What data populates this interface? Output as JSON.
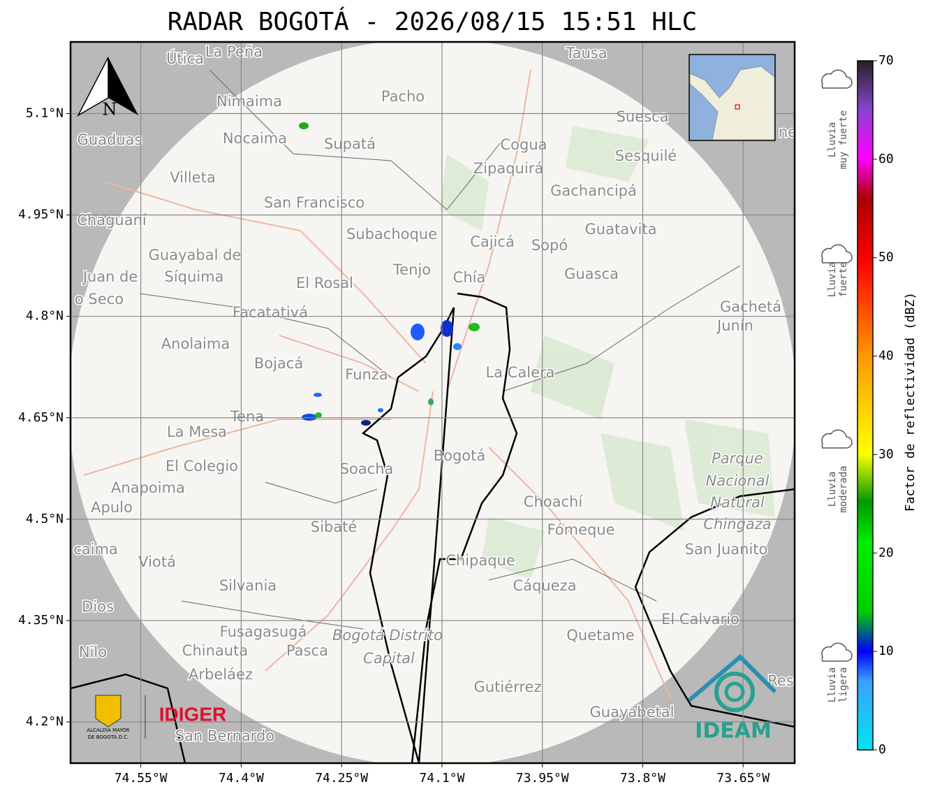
{
  "title": "RADAR BOGOTÁ - 2026/08/15 15:51 HLC",
  "map": {
    "xlim": [
      -74.655,
      -73.573
    ],
    "ylim": [
      4.139,
      5.206
    ],
    "xticks": [
      {
        "value": -74.55,
        "label": "74.55°W"
      },
      {
        "value": -74.4,
        "label": "74.4°W"
      },
      {
        "value": -74.25,
        "label": "74.25°W"
      },
      {
        "value": -74.1,
        "label": "74.1°W"
      },
      {
        "value": -73.95,
        "label": "73.95°W"
      },
      {
        "value": -73.8,
        "label": "73.8°W"
      },
      {
        "value": -73.65,
        "label": "73.65°W"
      }
    ],
    "yticks": [
      {
        "value": 4.2,
        "label": "4.2°N"
      },
      {
        "value": 4.35,
        "label": "4.35°N"
      },
      {
        "value": 4.5,
        "label": "4.5°N"
      },
      {
        "value": 4.65,
        "label": "4.65°N"
      },
      {
        "value": 4.8,
        "label": "4.8°N"
      },
      {
        "value": 4.95,
        "label": "4.95°N"
      },
      {
        "value": 5.1,
        "label": "5.1°N"
      }
    ],
    "north": "N",
    "places": [
      "Útica",
      "La Peña",
      "Tausa",
      "Pacho",
      "Nimaima",
      "Guaduas",
      "Nocaima",
      "Supatá",
      "Cogua",
      "Suesca",
      "Sesquilé",
      "Zipaquirá",
      "Villeta",
      "Gachancipá",
      "San Francisco",
      "Chaguaní",
      "Guatavita",
      "Subachoque",
      "Cajicá",
      "Sopó",
      "Guayabal de",
      "Síquima",
      "Juan de",
      "Tenjo",
      "Chía",
      "Guasca",
      "El Rosal",
      "o Seco",
      "Facatativá",
      "Gachetá",
      "Junín",
      "Anolaima",
      "Bojacá",
      "Funza",
      "La Calera",
      "Tena",
      "La Mesa",
      "Bogotá",
      "Parque",
      "Nacional",
      "Natural",
      "Chingaza",
      "El Colegio",
      "Soacha",
      "Anapoima",
      "Apulo",
      "Choachí",
      "Sibaté",
      "Fómeque",
      "San Juanito",
      "caima",
      "Viotá",
      "Chipaque",
      "Silvania",
      "Cáqueza",
      "Dios",
      "El Calvario",
      "Fusagasugá",
      "Bogotá Distrito",
      "Capital",
      "Quetame",
      "Nilo",
      "Chinauta",
      "Pasca",
      "Arbeláez",
      "Gutiérrez",
      "Guayabetal",
      "San Bernardo",
      "Res",
      "ne"
    ]
  },
  "colorbar": {
    "label": "Factor de reflectividad (dBZ)",
    "lim": [
      0,
      70
    ],
    "ticks": [
      0,
      10,
      20,
      30,
      40,
      50,
      60,
      70
    ]
  },
  "rain_levels": [
    [
      "Lluvia",
      "muy fuerte"
    ],
    [
      "Lluvia",
      "fuerte"
    ],
    [
      "Lluvia",
      "moderada"
    ],
    [
      "Lluvia",
      "ligera"
    ]
  ],
  "logos": {
    "idiger": "IDIGER",
    "ideam": "IDEAM",
    "alcaldia": [
      "ALCALDÍA MAYOR",
      "DE BOGOTÁ D.C."
    ]
  }
}
